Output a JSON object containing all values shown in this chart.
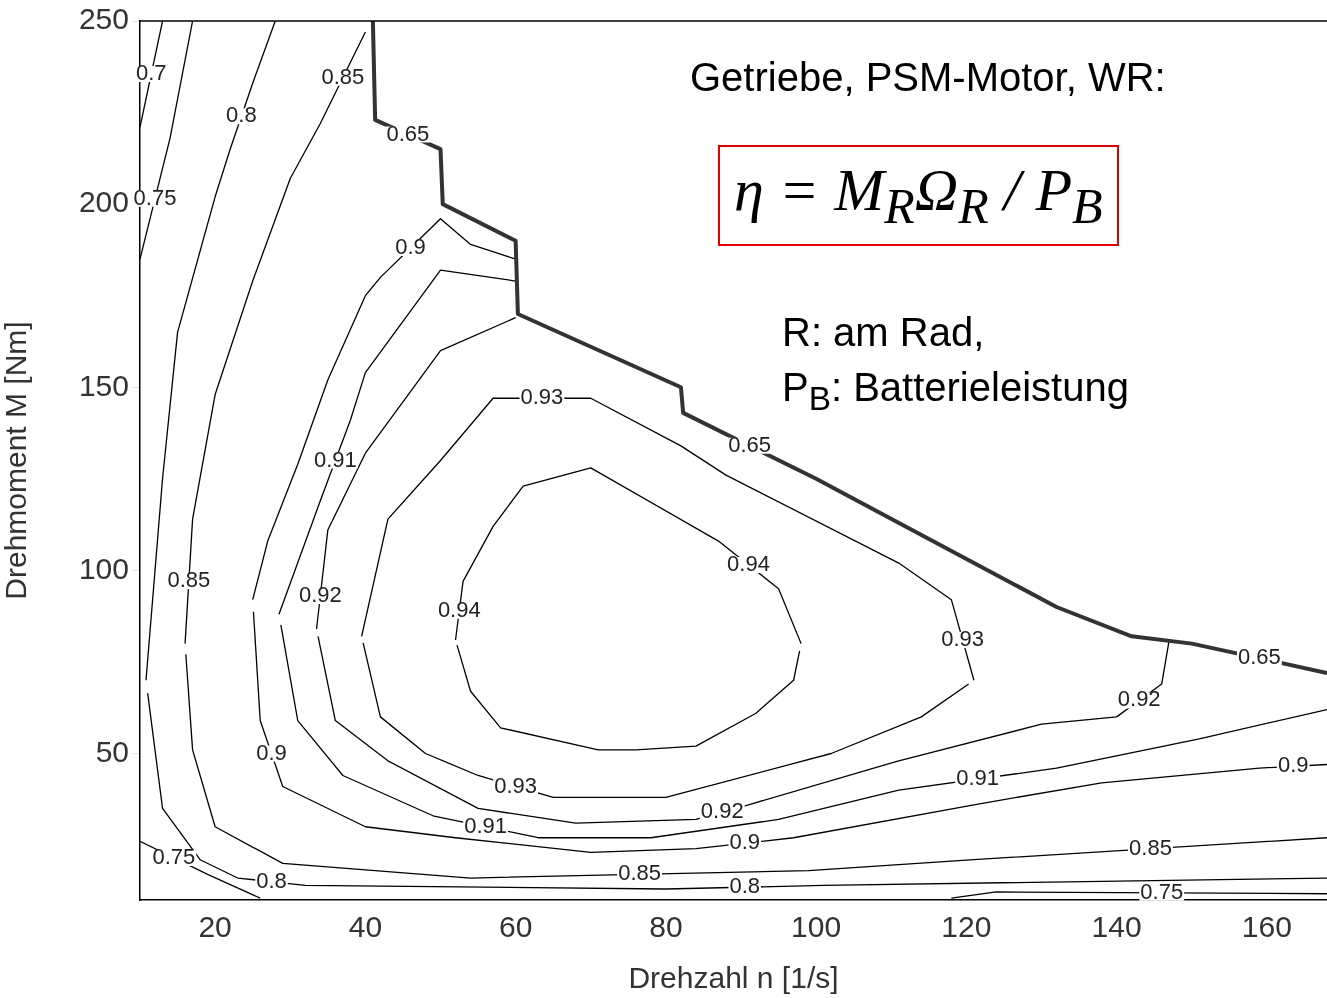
{
  "chart_data": {
    "type": "line",
    "xlabel": "Drehzahl n [1/s]",
    "ylabel": "Drehmoment M [Nm]",
    "xlim": [
      10,
      168
    ],
    "ylim": [
      10,
      250
    ],
    "xticks": [
      20,
      40,
      60,
      80,
      100,
      120,
      140,
      160
    ],
    "yticks": [
      50,
      100,
      150,
      200,
      250
    ],
    "grid": false,
    "legend": false,
    "marker": "none",
    "line_style": "solid",
    "series": [
      {
        "color": "#333333",
        "x": [
          41,
          41.3,
          50,
          50.3,
          60,
          60.3,
          82,
          82.3,
          100,
          132,
          142,
          150,
          168
        ],
        "values": [
          250,
          223,
          215,
          200,
          190,
          170,
          150,
          143,
          125,
          90,
          82,
          80,
          72
        ]
      },
      {
        "color": "#000000",
        "x": [
          52,
          53,
          57,
          61,
          70,
          87,
          95,
          98
        ],
        "values": [
          81,
          97,
          112,
          123,
          128,
          108,
          95,
          80
        ]
      },
      {
        "color": "#000000",
        "x": [
          52.2,
          54,
          58,
          71,
          76,
          84,
          92,
          97,
          97.8
        ],
        "values": [
          79.6,
          67,
          57,
          51,
          51,
          52,
          61,
          70,
          78
        ]
      },
      {
        "color": "#000000",
        "x": [
          39.5,
          43,
          50,
          57,
          70,
          82,
          88,
          111,
          118,
          121
        ],
        "values": [
          82,
          114,
          130,
          147,
          147,
          134,
          126,
          102,
          92,
          70
        ]
      },
      {
        "color": "#000000",
        "x": [
          39.7,
          42,
          48,
          55,
          65,
          80,
          102,
          114,
          120.3
        ],
        "values": [
          80.2,
          60,
          50,
          44,
          38,
          38,
          50,
          60,
          69
        ]
      },
      {
        "color": "#000000",
        "x": [
          33.5,
          35,
          40,
          50,
          60
        ],
        "values": [
          84,
          111,
          132,
          160,
          169
        ]
      },
      {
        "color": "#000000",
        "x": [
          33.7,
          36,
          43,
          55,
          68,
          84,
          91,
          111,
          130,
          140,
          146,
          147
        ],
        "values": [
          82,
          59,
          48,
          35,
          31,
          32,
          36,
          48,
          58,
          60,
          69,
          81
        ]
      },
      {
        "color": "#000000",
        "x": [
          28.5,
          34,
          38,
          40,
          50,
          60
        ],
        "values": [
          88,
          119,
          141,
          154,
          182,
          179
        ]
      },
      {
        "color": "#000000",
        "x": [
          28.75,
          31,
          37,
          49,
          63,
          78,
          95,
          111,
          132,
          151,
          168
        ],
        "values": [
          85.1,
          59,
          44,
          33,
          27,
          27,
          32,
          40,
          46,
          54,
          62
        ]
      },
      {
        "color": "#000000",
        "x": [
          25,
          27,
          31,
          35,
          40,
          42,
          50,
          54,
          60
        ],
        "values": [
          92,
          108,
          129,
          152,
          175,
          180,
          196,
          189,
          185
        ]
      },
      {
        "color": "#000000",
        "x": [
          25.1,
          26,
          29,
          40,
          52,
          70,
          84,
          97,
          121,
          138,
          159,
          168
        ],
        "values": [
          88.7,
          59,
          41,
          30,
          27,
          23,
          24,
          27,
          36,
          42,
          46,
          47
        ]
      },
      {
        "color": "#000000",
        "x": [
          16,
          17,
          20,
          25,
          30,
          34,
          40
        ],
        "values": [
          80,
          114,
          148,
          179,
          207,
          222,
          247
        ]
      },
      {
        "color": "#000000",
        "x": [
          16.1,
          17,
          20,
          29,
          54,
          99,
          121,
          168
        ],
        "values": [
          77.1,
          51,
          30,
          20,
          16,
          18,
          21,
          27
        ]
      },
      {
        "color": "#000000",
        "x": [
          10.8,
          13,
          15,
          20,
          22,
          25,
          28
        ],
        "values": [
          70,
          125,
          165,
          202,
          215,
          233,
          250
        ]
      },
      {
        "color": "#000000",
        "x": [
          11.02,
          13,
          18,
          23,
          32,
          80,
          101,
          168
        ],
        "values": [
          66.5,
          35,
          21,
          16,
          14,
          13,
          14,
          16
        ]
      },
      {
        "color": "#000000",
        "x": [
          10,
          14,
          17
        ],
        "values": [
          185,
          218,
          250
        ]
      },
      {
        "color": "#000000",
        "x": [
          10,
          19,
          26
        ],
        "values": [
          26,
          17,
          10.5
        ]
      },
      {
        "color": "#000000",
        "x": [
          118,
          124,
          168
        ],
        "values": [
          10.5,
          12.2,
          11.7
        ]
      },
      {
        "color": "#000000",
        "x": [
          10,
          13
        ],
        "values": [
          221,
          250
        ]
      }
    ],
    "annotations": [
      {
        "text": "0.7",
        "x": 11.5,
        "y": 235.5
      },
      {
        "text": "0.75",
        "x": 12,
        "y": 201.5
      },
      {
        "text": "0.8",
        "x": 23.5,
        "y": 224
      },
      {
        "text": "0.85",
        "x": 37,
        "y": 234.5
      },
      {
        "text": "0.65",
        "x": 45.65,
        "y": 219
      },
      {
        "text": "0.9",
        "x": 46,
        "y": 188
      },
      {
        "text": "0.93",
        "x": 63.5,
        "y": 147
      },
      {
        "text": "0.91",
        "x": 36,
        "y": 130
      },
      {
        "text": "0.92",
        "x": 34,
        "y": 93
      },
      {
        "text": "0.85",
        "x": 16.5,
        "y": 97
      },
      {
        "text": "0.94",
        "x": 91,
        "y": 101.5
      },
      {
        "text": "0.94",
        "x": 52.5,
        "y": 89
      },
      {
        "text": "0.93",
        "x": 119.5,
        "y": 81
      },
      {
        "text": "0.92",
        "x": 143,
        "y": 64.5
      },
      {
        "text": "0.9",
        "x": 27.5,
        "y": 50
      },
      {
        "text": "0.93",
        "x": 60,
        "y": 41
      },
      {
        "text": "0.92",
        "x": 87.5,
        "y": 34
      },
      {
        "text": "0.91",
        "x": 56,
        "y": 30
      },
      {
        "text": "0.9",
        "x": 90.5,
        "y": 25.5
      },
      {
        "text": "0.91",
        "x": 121.5,
        "y": 43
      },
      {
        "text": "0.9",
        "x": 163.5,
        "y": 46.5
      },
      {
        "text": "0.85",
        "x": 144.5,
        "y": 24
      },
      {
        "text": "0.85",
        "x": 76.5,
        "y": 17
      },
      {
        "text": "0.8",
        "x": 27.5,
        "y": 15
      },
      {
        "text": "0.75",
        "x": 14.5,
        "y": 21.5
      },
      {
        "text": "0.8",
        "x": 90.5,
        "y": 13.5
      },
      {
        "text": "0.75",
        "x": 146,
        "y": 11.95
      },
      {
        "text": "0.65",
        "x": 91.15,
        "y": 134
      },
      {
        "text": "0.65",
        "x": 159,
        "y": 76
      },
      "Getriebe, PSM-Motor, WR:",
      "η = M$_{R}$Ω$_{R}$ / P$_{B}$",
      "R: am Rad,",
      "P$_{B}$: Batterieleistung"
    ]
  }
}
